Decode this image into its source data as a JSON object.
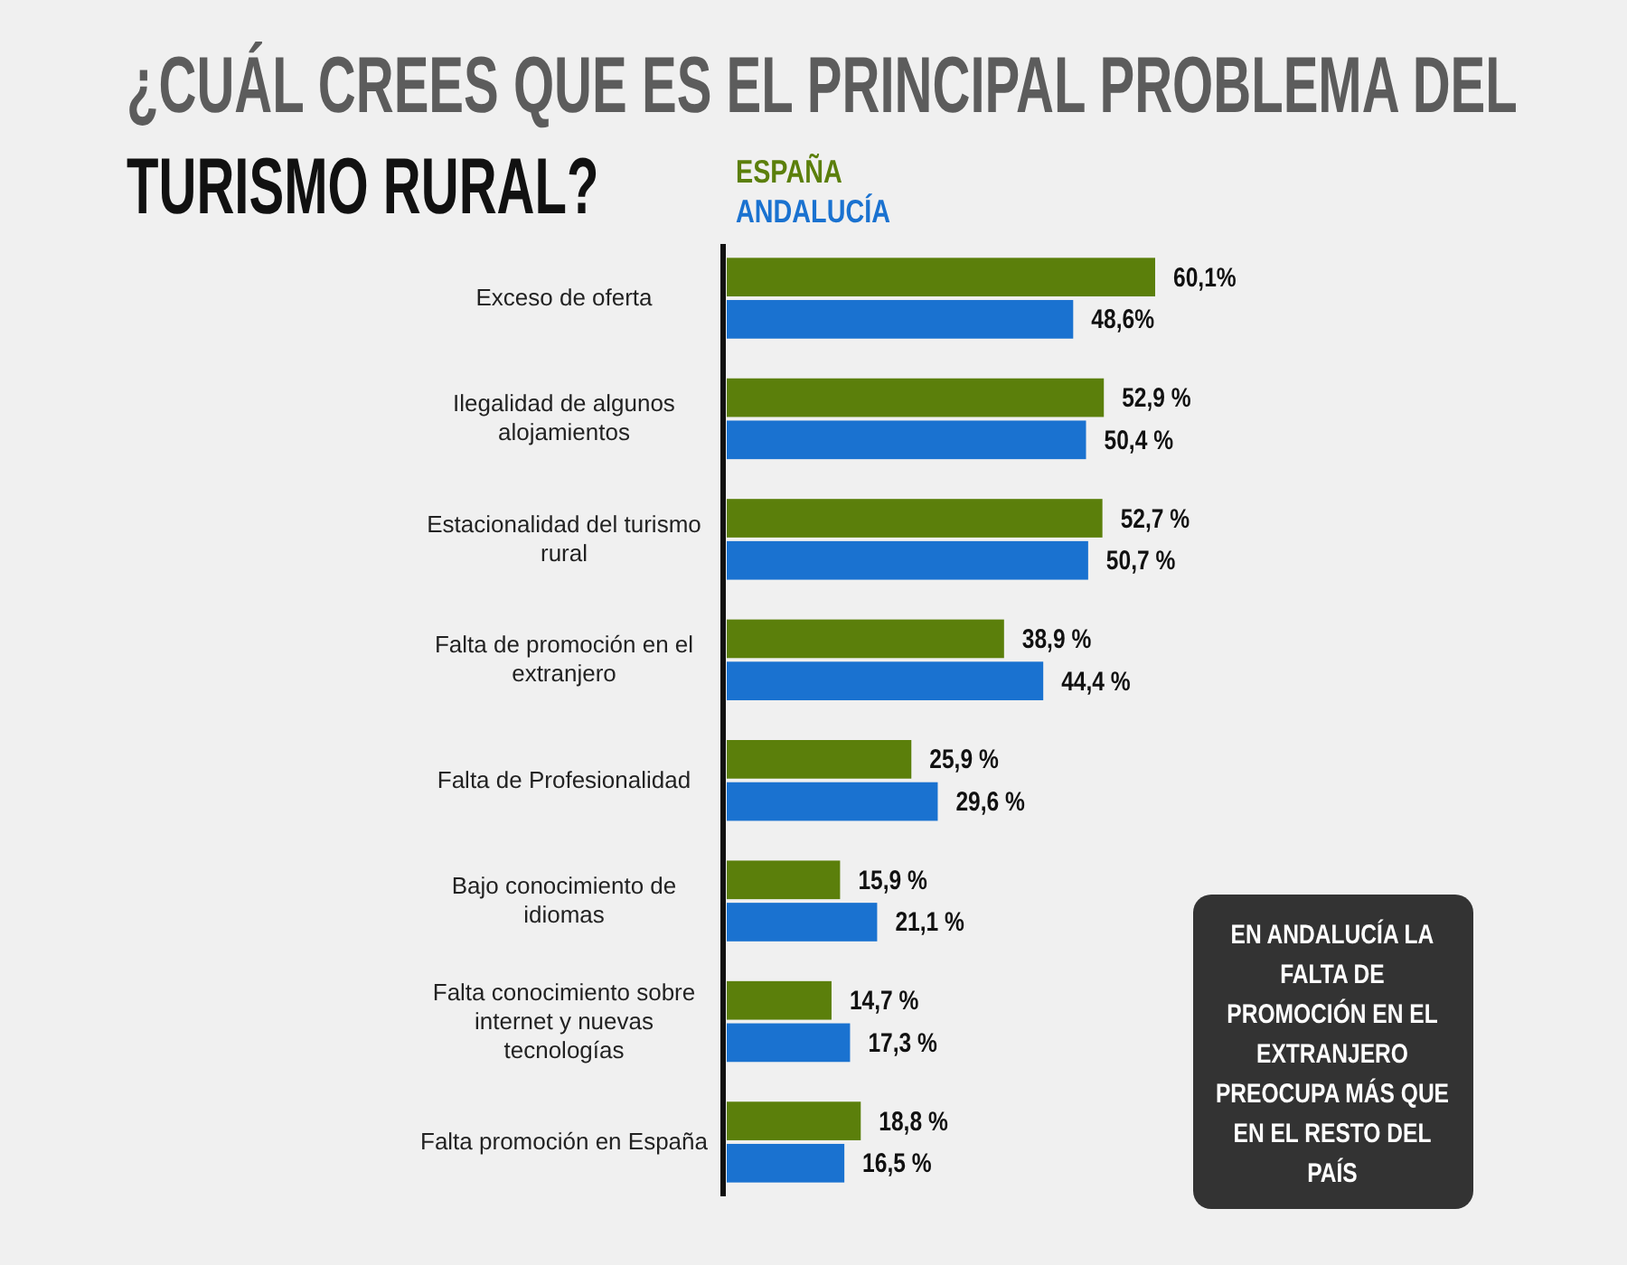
{
  "chart_data": {
    "type": "bar",
    "orientation": "horizontal",
    "title": "¿CUÁL CREES QUE ES EL PRINCIPAL PROBLEMA DEL TURISMO RURAL?",
    "categories": [
      "Exceso de oferta",
      "Ilegalidad de algunos alojamientos",
      "Estacionalidad del turismo rural",
      "Falta de promoción en el extranjero",
      "Falta de Profesionalidad",
      "Bajo conocimiento de idiomas",
      "Falta conocimiento sobre internet y nuevas tecnologías",
      "Falta promoción en España"
    ],
    "series": [
      {
        "name": "ESPAÑA",
        "color": "#5b7f0b",
        "values": [
          60.1,
          52.9,
          52.7,
          38.9,
          25.9,
          15.9,
          14.7,
          18.8
        ],
        "value_labels": [
          "60,1%",
          "52,9 %",
          "52,7 %",
          "38,9 %",
          "25,9 %",
          "15,9 %",
          "14,7 %",
          "18,8 %"
        ]
      },
      {
        "name": "ANDALUCÍA",
        "color": "#1a72d0",
        "values": [
          48.6,
          50.4,
          50.7,
          44.4,
          29.6,
          21.1,
          17.3,
          16.5
        ],
        "value_labels": [
          "48,6%",
          "50,4 %",
          "50,7 %",
          "44,4 %",
          "29,6 %",
          "21,1 %",
          "17,3 %",
          "16,5 %"
        ]
      }
    ],
    "legend": "top left",
    "annotations": [
      "EN ANDALUCÍA LA FALTA DE PROMOCIÓN EN EL EXTRANJERO PREOCUPA MÁS QUE EN EL RESTO DEL PAÍS"
    ]
  }
}
